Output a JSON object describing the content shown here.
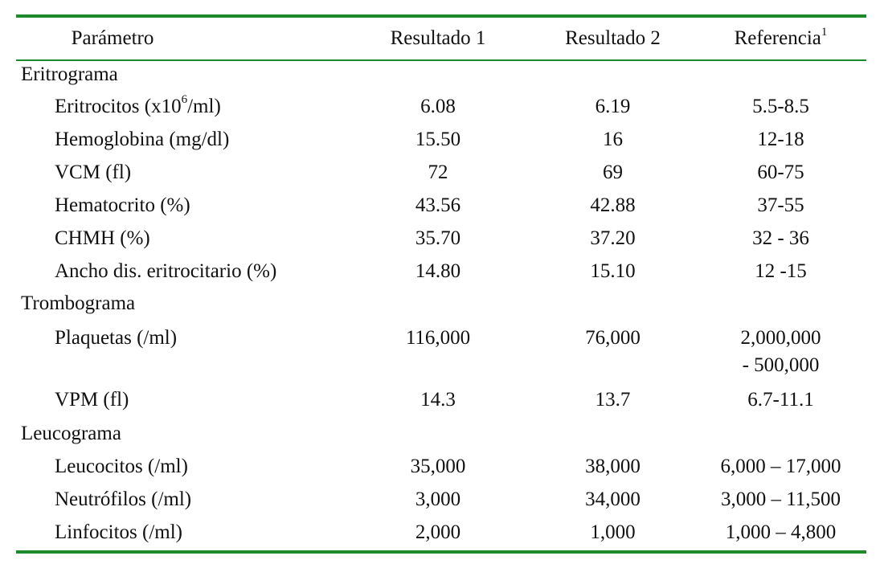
{
  "colors": {
    "rule": "#1f8a2c"
  },
  "header": {
    "parametro": "Parámetro",
    "r1": "Resultado 1",
    "r2": "Resultado 2",
    "ref": "Referencia",
    "ref_sup": "1"
  },
  "groups": {
    "eritrograma": "Eritrograma",
    "trombograma": "Trombograma",
    "leucograma": "Leucograma"
  },
  "rows": {
    "eritrocitos": {
      "label_a": "Eritrocitos (x10",
      "label_sup": "6",
      "label_b": "/ml)",
      "r1": "6.08",
      "r2": "6.19",
      "ref": "5.5-8.5"
    },
    "hemoglobina": {
      "label": "Hemoglobina (mg/dl)",
      "r1": "15.50",
      "r2": "16",
      "ref": "12-18"
    },
    "vcm": {
      "label": "VCM (fl)",
      "r1": "72",
      "r2": "69",
      "ref": "60-75"
    },
    "hematocrito": {
      "label": "Hematocrito (%)",
      "r1": "43.56",
      "r2": "42.88",
      "ref": "37-55"
    },
    "chmh": {
      "label": "CHMH (%)",
      "r1": "35.70",
      "r2": "37.20",
      "ref": "32 - 36"
    },
    "ancho": {
      "label": "Ancho dis. eritrocitario (%)",
      "r1": "14.80",
      "r2": "15.10",
      "ref": "12 -15"
    },
    "plaquetas": {
      "label": "Plaquetas (/ml)",
      "r1": "116,000",
      "r2": "76,000",
      "ref_line1": "2,000,000",
      "ref_line2": "- 500,000"
    },
    "vpm": {
      "label": "VPM (fl)",
      "r1": "14.3",
      "r2": "13.7",
      "ref": "6.7-11.1"
    },
    "leucocitos": {
      "label": "Leucocitos (/ml)",
      "r1": "35,000",
      "r2": "38,000",
      "ref": "6,000 – 17,000"
    },
    "neutrofilos": {
      "label": "Neutrófilos (/ml)",
      "r1": "3,000",
      "r2": "34,000",
      "ref": "3,000 – 11,500"
    },
    "linfocitos": {
      "label": "Linfocitos (/ml)",
      "r1": "2,000",
      "r2": "1,000",
      "ref": "1,000 – 4,800"
    }
  }
}
